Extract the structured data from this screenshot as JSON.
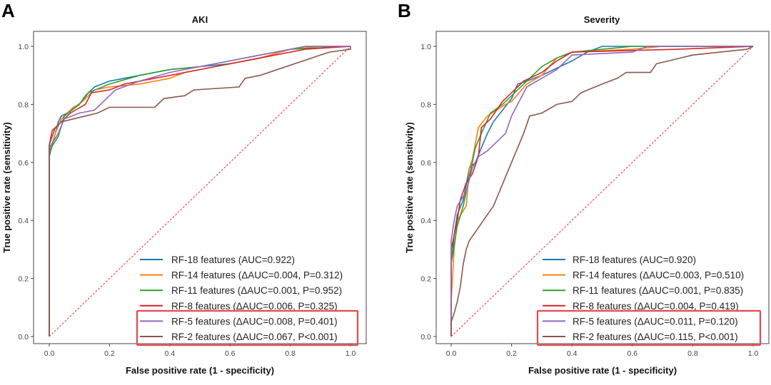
{
  "chart_data": [
    {
      "panel_label": "A",
      "type": "line",
      "title": "AKI",
      "xlabel": "False positive rate (1 - specificity)",
      "ylabel": "True positive rate (sensitivity)",
      "xlim": [
        0,
        1
      ],
      "ylim": [
        0,
        1
      ],
      "xticks": [
        "0.0",
        "0.2",
        "0.4",
        "0.6",
        "0.8",
        "1.0"
      ],
      "yticks": [
        "0.0",
        "0.2",
        "0.4",
        "0.6",
        "0.8",
        "1.0"
      ],
      "grid": false,
      "legend_placement": "lower-right",
      "highlight_color": "#e8474c",
      "highlighted_series": [
        "RF-5 features",
        "RF-2 features"
      ],
      "reference_line": {
        "style": "dashed",
        "color": "#e8474c",
        "points": [
          [
            0,
            0
          ],
          [
            1,
            1
          ]
        ]
      },
      "series": [
        {
          "name": "RF-18 features (AUC=0.922)",
          "color": "#1f77b4",
          "points": [
            [
              0,
              0
            ],
            [
              0,
              0.62
            ],
            [
              0.01,
              0.66
            ],
            [
              0.02,
              0.7
            ],
            [
              0.03,
              0.74
            ],
            [
              0.04,
              0.76
            ],
            [
              0.06,
              0.77
            ],
            [
              0.08,
              0.79
            ],
            [
              0.1,
              0.8
            ],
            [
              0.12,
              0.83
            ],
            [
              0.15,
              0.86
            ],
            [
              0.2,
              0.88
            ],
            [
              0.3,
              0.9
            ],
            [
              0.4,
              0.92
            ],
            [
              0.5,
              0.93
            ],
            [
              0.6,
              0.94
            ],
            [
              0.7,
              0.96
            ],
            [
              0.8,
              0.99
            ],
            [
              0.85,
              1.0
            ],
            [
              1,
              1
            ]
          ]
        },
        {
          "name": "RF-14 features (ΔAUC=0.004, P=0.312)",
          "color": "#ff7f0e",
          "points": [
            [
              0,
              0
            ],
            [
              0,
              0.63
            ],
            [
              0.02,
              0.7
            ],
            [
              0.04,
              0.75
            ],
            [
              0.07,
              0.78
            ],
            [
              0.11,
              0.81
            ],
            [
              0.15,
              0.85
            ],
            [
              0.2,
              0.86
            ],
            [
              0.3,
              0.87
            ],
            [
              0.4,
              0.89
            ],
            [
              0.45,
              0.91
            ],
            [
              0.55,
              0.93
            ],
            [
              0.7,
              0.96
            ],
            [
              0.8,
              0.99
            ],
            [
              0.9,
              1.0
            ],
            [
              1,
              1
            ]
          ]
        },
        {
          "name": "RF-11 features (ΔAUC=0.001, P=0.952)",
          "color": "#2ca02c",
          "points": [
            [
              0,
              0
            ],
            [
              0,
              0.64
            ],
            [
              0.03,
              0.69
            ],
            [
              0.05,
              0.76
            ],
            [
              0.1,
              0.8
            ],
            [
              0.13,
              0.84
            ],
            [
              0.2,
              0.87
            ],
            [
              0.3,
              0.9
            ],
            [
              0.4,
              0.92
            ],
            [
              0.5,
              0.93
            ],
            [
              0.6,
              0.95
            ],
            [
              0.7,
              0.97
            ],
            [
              0.8,
              0.99
            ],
            [
              1,
              1
            ]
          ]
        },
        {
          "name": "RF-8 features (ΔAUC=0.006, P=0.325)",
          "color": "#d62728",
          "points": [
            [
              0,
              0
            ],
            [
              0,
              0.66
            ],
            [
              0.01,
              0.71
            ],
            [
              0.04,
              0.74
            ],
            [
              0.07,
              0.77
            ],
            [
              0.12,
              0.8
            ],
            [
              0.14,
              0.84
            ],
            [
              0.2,
              0.85
            ],
            [
              0.25,
              0.87
            ],
            [
              0.35,
              0.89
            ],
            [
              0.5,
              0.92
            ],
            [
              0.6,
              0.94
            ],
            [
              0.7,
              0.96
            ],
            [
              0.75,
              0.97
            ],
            [
              0.85,
              0.99
            ],
            [
              1,
              1
            ]
          ]
        },
        {
          "name": "RF-5 features (ΔAUC=0.008, P=0.401)",
          "color": "#9467bd",
          "points": [
            [
              0,
              0
            ],
            [
              0,
              0.65
            ],
            [
              0.03,
              0.7
            ],
            [
              0.05,
              0.75
            ],
            [
              0.1,
              0.77
            ],
            [
              0.15,
              0.78
            ],
            [
              0.18,
              0.81
            ],
            [
              0.22,
              0.85
            ],
            [
              0.3,
              0.88
            ],
            [
              0.4,
              0.91
            ],
            [
              0.5,
              0.93
            ],
            [
              0.6,
              0.95
            ],
            [
              0.7,
              0.97
            ],
            [
              0.8,
              0.99
            ],
            [
              0.85,
              1.0
            ],
            [
              1,
              1
            ]
          ]
        },
        {
          "name": "RF-2 features (ΔAUC=0.067, P<0.001)",
          "color": "#8c564b",
          "points": [
            [
              0,
              0
            ],
            [
              0,
              0.66
            ],
            [
              0.02,
              0.72
            ],
            [
              0.04,
              0.74
            ],
            [
              0.08,
              0.75
            ],
            [
              0.16,
              0.77
            ],
            [
              0.2,
              0.79
            ],
            [
              0.35,
              0.79
            ],
            [
              0.38,
              0.82
            ],
            [
              0.45,
              0.83
            ],
            [
              0.48,
              0.85
            ],
            [
              0.63,
              0.86
            ],
            [
              0.65,
              0.89
            ],
            [
              0.7,
              0.9
            ],
            [
              0.9,
              0.97
            ],
            [
              0.93,
              0.98
            ],
            [
              1,
              0.99
            ],
            [
              1,
              1
            ]
          ]
        }
      ]
    },
    {
      "panel_label": "B",
      "type": "line",
      "title": "Severity",
      "xlabel": "False positive rate (1 - specificity)",
      "ylabel": "True positive rate (sensitivity)",
      "xlim": [
        0,
        1
      ],
      "ylim": [
        0,
        1
      ],
      "xticks": [
        "0.0",
        "0.2",
        "0.4",
        "0.6",
        "0.8",
        "1.0"
      ],
      "yticks": [
        "0.0",
        "0.2",
        "0.4",
        "0.6",
        "0.8",
        "1.0"
      ],
      "grid": false,
      "legend_placement": "lower-right",
      "highlight_color": "#e8474c",
      "highlighted_series": [
        "RF-5 features",
        "RF-2 features"
      ],
      "reference_line": {
        "style": "dashed",
        "color": "#e8474c",
        "points": [
          [
            0,
            0
          ],
          [
            1,
            1
          ]
        ]
      },
      "series": [
        {
          "name": "RF-18 features (AUC=0.920)",
          "color": "#1f77b4",
          "points": [
            [
              0,
              0
            ],
            [
              0,
              0.25
            ],
            [
              0.01,
              0.35
            ],
            [
              0.02,
              0.42
            ],
            [
              0.04,
              0.47
            ],
            [
              0.06,
              0.58
            ],
            [
              0.08,
              0.6
            ],
            [
              0.12,
              0.7
            ],
            [
              0.14,
              0.74
            ],
            [
              0.17,
              0.78
            ],
            [
              0.2,
              0.82
            ],
            [
              0.22,
              0.87
            ],
            [
              0.25,
              0.88
            ],
            [
              0.3,
              0.9
            ],
            [
              0.4,
              0.95
            ],
            [
              0.45,
              0.98
            ],
            [
              0.5,
              1.0
            ],
            [
              1,
              1
            ]
          ]
        },
        {
          "name": "RF-14 features (ΔAUC=0.003, P=0.510)",
          "color": "#ff7f0e",
          "points": [
            [
              0,
              0
            ],
            [
              0,
              0.12
            ],
            [
              0.01,
              0.3
            ],
            [
              0.02,
              0.4
            ],
            [
              0.05,
              0.45
            ],
            [
              0.06,
              0.58
            ],
            [
              0.07,
              0.61
            ],
            [
              0.09,
              0.72
            ],
            [
              0.12,
              0.76
            ],
            [
              0.18,
              0.8
            ],
            [
              0.2,
              0.81
            ],
            [
              0.25,
              0.87
            ],
            [
              0.3,
              0.9
            ],
            [
              0.35,
              0.96
            ],
            [
              0.4,
              0.98
            ],
            [
              0.6,
              0.99
            ],
            [
              0.7,
              1.0
            ],
            [
              1,
              1
            ]
          ]
        },
        {
          "name": "RF-11 features (ΔAUC=0.001, P=0.835)",
          "color": "#2ca02c",
          "points": [
            [
              0,
              0
            ],
            [
              0,
              0.25
            ],
            [
              0.02,
              0.38
            ],
            [
              0.04,
              0.45
            ],
            [
              0.07,
              0.6
            ],
            [
              0.08,
              0.65
            ],
            [
              0.1,
              0.7
            ],
            [
              0.13,
              0.77
            ],
            [
              0.17,
              0.8
            ],
            [
              0.22,
              0.85
            ],
            [
              0.27,
              0.9
            ],
            [
              0.3,
              0.93
            ],
            [
              0.35,
              0.96
            ],
            [
              0.4,
              0.98
            ],
            [
              0.5,
              0.99
            ],
            [
              0.6,
              1.0
            ],
            [
              1,
              1
            ]
          ]
        },
        {
          "name": "RF-8 features (ΔAUC=0.004, P=0.419)",
          "color": "#d62728",
          "points": [
            [
              0,
              0
            ],
            [
              0,
              0.3
            ],
            [
              0.02,
              0.4
            ],
            [
              0.03,
              0.47
            ],
            [
              0.05,
              0.53
            ],
            [
              0.07,
              0.56
            ],
            [
              0.09,
              0.62
            ],
            [
              0.1,
              0.72
            ],
            [
              0.13,
              0.75
            ],
            [
              0.17,
              0.81
            ],
            [
              0.2,
              0.84
            ],
            [
              0.24,
              0.88
            ],
            [
              0.3,
              0.91
            ],
            [
              0.35,
              0.95
            ],
            [
              0.4,
              0.98
            ],
            [
              0.75,
              0.99
            ],
            [
              1,
              1
            ]
          ]
        },
        {
          "name": "RF-5 features (ΔAUC=0.011, P=0.120)",
          "color": "#9467bd",
          "points": [
            [
              0,
              0
            ],
            [
              0,
              0.33
            ],
            [
              0.01,
              0.4
            ],
            [
              0.02,
              0.45
            ],
            [
              0.05,
              0.5
            ],
            [
              0.07,
              0.58
            ],
            [
              0.09,
              0.62
            ],
            [
              0.12,
              0.64
            ],
            [
              0.15,
              0.67
            ],
            [
              0.18,
              0.7
            ],
            [
              0.2,
              0.76
            ],
            [
              0.22,
              0.8
            ],
            [
              0.25,
              0.86
            ],
            [
              0.3,
              0.89
            ],
            [
              0.35,
              0.92
            ],
            [
              0.4,
              0.97
            ],
            [
              0.6,
              0.98
            ],
            [
              0.65,
              1.0
            ],
            [
              1,
              1
            ]
          ]
        },
        {
          "name": "RF-2 features (ΔAUC=0.115, P<0.001)",
          "color": "#8c564b",
          "points": [
            [
              0,
              0
            ],
            [
              0,
              0.05
            ],
            [
              0.01,
              0.08
            ],
            [
              0.02,
              0.12
            ],
            [
              0.03,
              0.17
            ],
            [
              0.04,
              0.25
            ],
            [
              0.05,
              0.3
            ],
            [
              0.06,
              0.33
            ],
            [
              0.14,
              0.45
            ],
            [
              0.24,
              0.7
            ],
            [
              0.26,
              0.76
            ],
            [
              0.3,
              0.77
            ],
            [
              0.35,
              0.8
            ],
            [
              0.4,
              0.81
            ],
            [
              0.43,
              0.84
            ],
            [
              0.5,
              0.87
            ],
            [
              0.55,
              0.89
            ],
            [
              0.58,
              0.91
            ],
            [
              0.66,
              0.91
            ],
            [
              0.68,
              0.94
            ],
            [
              0.72,
              0.95
            ],
            [
              0.8,
              0.97
            ],
            [
              0.98,
              0.99
            ],
            [
              1,
              1
            ]
          ]
        }
      ]
    }
  ]
}
